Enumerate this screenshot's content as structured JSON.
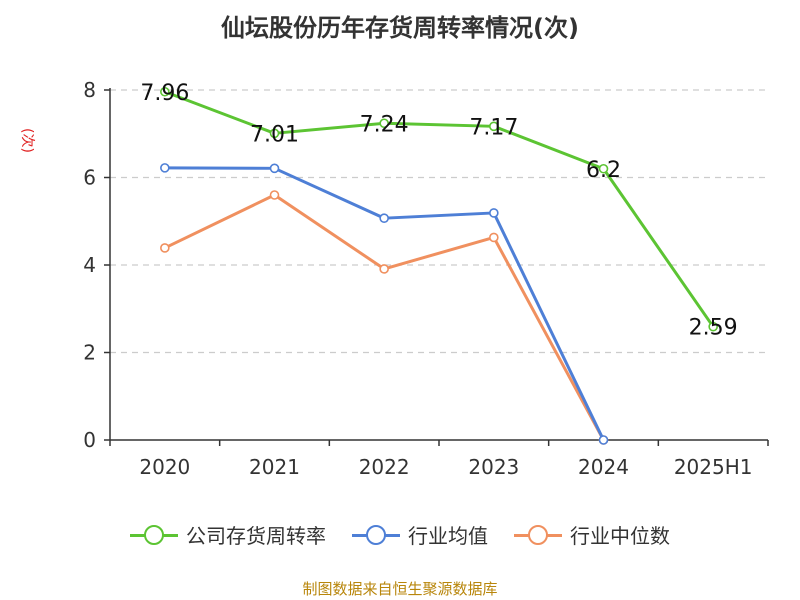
{
  "chart_data": {
    "type": "line",
    "title": "仙坛股份历年存货周转率情况(次)",
    "ylabel": "(次)",
    "xlabel": "",
    "categories": [
      "2020",
      "2021",
      "2022",
      "2023",
      "2024",
      "2025H1"
    ],
    "ylim": [
      0,
      8
    ],
    "yticks": [
      "0",
      "2",
      "4",
      "6",
      "8"
    ],
    "grid": true,
    "legend_position": "bottom",
    "series": [
      {
        "name": "公司存货周转率",
        "color": "#5cc433",
        "values": [
          7.96,
          7.01,
          7.24,
          7.17,
          6.2,
          2.59
        ],
        "labels": [
          "7.96",
          "7.01",
          "7.24",
          "7.17",
          "6.2",
          "2.59"
        ]
      },
      {
        "name": "行业均值",
        "color": "#4e7fd6",
        "values": [
          6.22,
          6.21,
          5.07,
          5.19,
          0,
          null
        ]
      },
      {
        "name": "行业中位数",
        "color": "#f0905f",
        "values": [
          4.39,
          5.6,
          3.91,
          4.63,
          0,
          null
        ]
      }
    ]
  },
  "source": "制图数据来自恒生聚源数据库"
}
